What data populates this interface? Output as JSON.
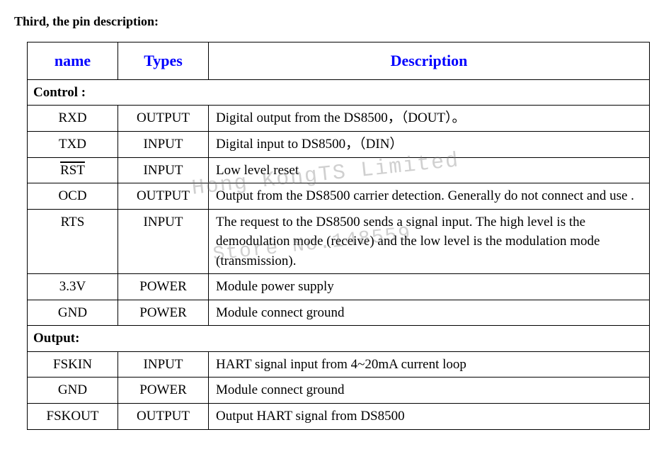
{
  "heading": "Third, the pin description:",
  "watermark": {
    "line1": "Hong KongTS Limited",
    "line2": "Store No.148559"
  },
  "table": {
    "headers": {
      "name": "name",
      "types": "Types",
      "description": "Description"
    },
    "sections": [
      {
        "label": "Control :",
        "rows": [
          {
            "name": "RXD",
            "overline": false,
            "type": "OUTPUT",
            "desc": "Digital output from the DS8500，（DOUT）。",
            "justify": false
          },
          {
            "name": "TXD",
            "overline": false,
            "type": "INPUT",
            "desc": "Digital input to DS8500，（DIN）",
            "justify": false
          },
          {
            "name": "RST",
            "overline": true,
            "type": "INPUT",
            "desc": "Low level reset",
            "justify": false
          },
          {
            "name": "OCD",
            "overline": false,
            "type": "OUTPUT",
            "desc": "Output from the DS8500 carrier detection. Generally do not connect and use .",
            "justify": true
          },
          {
            "name": "RTS",
            "overline": false,
            "type": "INPUT",
            "desc": "The request to the DS8500 sends a signal input. The high level is the demodulation mode (receive) and the low level is the modulation mode (transmission).",
            "justify": true
          },
          {
            "name": "3.3V",
            "overline": false,
            "type": "POWER",
            "desc": "Module power supply",
            "justify": false
          },
          {
            "name": "GND",
            "overline": false,
            "type": "POWER",
            "desc": "Module connect ground",
            "justify": false
          }
        ]
      },
      {
        "label": "Output:",
        "rows": [
          {
            "name": "FSKIN",
            "overline": false,
            "type": "INPUT",
            "desc": "HART signal input from 4~20mA current loop",
            "justify": false
          },
          {
            "name": "GND",
            "overline": false,
            "type": "POWER",
            "desc": "Module connect ground",
            "justify": false
          },
          {
            "name": "FSKOUT",
            "overline": false,
            "type": "OUTPUT",
            "desc": "Output HART signal from DS8500",
            "justify": false
          }
        ]
      }
    ]
  }
}
